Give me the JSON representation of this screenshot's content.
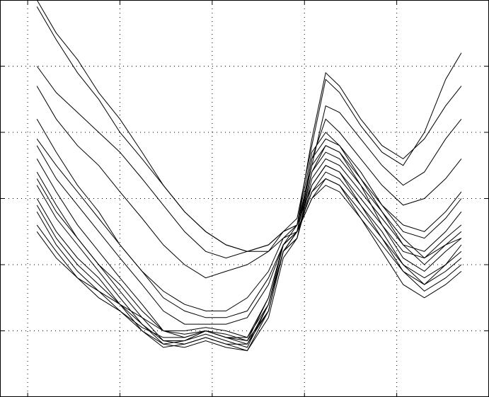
{
  "chart_data": {
    "type": "line",
    "x": [
      0.1,
      0.31,
      0.54,
      0.77,
      1.0,
      1.24,
      1.47,
      1.7,
      1.93,
      2.15,
      2.38,
      2.61,
      2.77,
      2.92,
      3.08,
      3.23,
      3.38,
      3.61,
      3.84,
      4.07,
      4.3,
      4.53,
      4.7
    ],
    "xlim": [
      -0.3,
      5
    ],
    "xticks": [
      0,
      1,
      2,
      3,
      4
    ],
    "ylim": [
      0,
      6
    ],
    "yticks": [
      1,
      2,
      3,
      4,
      5
    ],
    "grid": true,
    "series": [
      {
        "color": "#000000",
        "values": [
          5.9,
          5.4,
          4.9,
          4.5,
          4.0,
          3.6,
          3.2,
          2.8,
          2.5,
          2.3,
          2.2,
          2.3,
          2.5,
          2.7,
          3.8,
          4.8,
          4.6,
          4.1,
          3.7,
          3.5,
          4.0,
          4.8,
          5.2
        ]
      },
      {
        "color": "#000000",
        "values": [
          5.0,
          4.6,
          4.3,
          4.0,
          3.7,
          3.3,
          2.9,
          2.5,
          2.2,
          2.1,
          2.2,
          2.2,
          2.5,
          2.6,
          3.5,
          4.4,
          4.3,
          3.9,
          3.5,
          3.2,
          3.4,
          3.9,
          4.2
        ]
      },
      {
        "color": "#000000",
        "values": [
          4.7,
          4.2,
          3.8,
          3.5,
          3.1,
          2.7,
          2.3,
          2.0,
          1.8,
          1.9,
          2.0,
          2.2,
          2.4,
          2.5,
          3.6,
          4.2,
          4.0,
          3.6,
          3.2,
          2.9,
          3.0,
          3.3,
          3.6
        ]
      },
      {
        "color": "#000000",
        "values": [
          4.2,
          3.7,
          3.2,
          2.8,
          2.3,
          1.9,
          1.6,
          1.4,
          1.3,
          1.3,
          1.5,
          1.9,
          2.4,
          2.6,
          3.7,
          4.0,
          3.8,
          3.4,
          2.9,
          2.5,
          2.4,
          2.7,
          3.0
        ]
      },
      {
        "color": "#000000",
        "values": [
          3.8,
          3.3,
          2.9,
          2.5,
          2.1,
          1.7,
          1.3,
          1.1,
          1.1,
          1.1,
          1.2,
          1.7,
          2.3,
          2.5,
          3.5,
          3.8,
          3.7,
          3.3,
          2.8,
          2.3,
          2.2,
          2.5,
          2.8
        ]
      },
      {
        "color": "#000000",
        "values": [
          3.6,
          3.1,
          2.6,
          2.2,
          1.8,
          1.4,
          1.0,
          0.9,
          1.0,
          0.9,
          0.9,
          1.4,
          2.2,
          2.5,
          3.4,
          3.7,
          3.6,
          3.2,
          2.8,
          2.4,
          2.1,
          2.4,
          2.6
        ]
      },
      {
        "color": "#000000",
        "values": [
          3.4,
          2.9,
          2.4,
          2.0,
          1.6,
          1.2,
          0.85,
          0.8,
          0.9,
          0.8,
          0.8,
          1.3,
          2.2,
          2.4,
          3.3,
          3.6,
          3.5,
          3.1,
          2.7,
          2.3,
          2.0,
          2.3,
          2.5
        ]
      },
      {
        "color": "#000000",
        "values": [
          3.2,
          2.7,
          2.3,
          1.9,
          1.5,
          1.1,
          0.8,
          0.75,
          0.85,
          0.75,
          0.7,
          1.2,
          2.1,
          2.4,
          3.2,
          3.5,
          3.4,
          3.0,
          2.6,
          2.1,
          1.9,
          2.2,
          2.4
        ]
      },
      {
        "color": "#000000",
        "values": [
          3.0,
          2.5,
          2.1,
          1.8,
          1.4,
          1.0,
          0.75,
          0.8,
          0.9,
          0.8,
          0.7,
          1.3,
          2.2,
          2.5,
          3.1,
          3.4,
          3.3,
          2.9,
          2.5,
          2.0,
          1.8,
          2.0,
          2.2
        ]
      },
      {
        "color": "#000000",
        "values": [
          2.8,
          2.3,
          1.9,
          1.6,
          1.3,
          1.0,
          0.8,
          0.85,
          0.95,
          0.85,
          0.75,
          1.4,
          2.2,
          2.5,
          3.0,
          3.3,
          3.2,
          2.8,
          2.4,
          1.9,
          1.6,
          1.8,
          2.0
        ]
      },
      {
        "color": "#000000",
        "values": [
          2.6,
          2.2,
          1.8,
          1.5,
          1.3,
          1.05,
          0.9,
          0.9,
          1.0,
          0.95,
          0.85,
          1.5,
          2.3,
          2.5,
          3.0,
          3.2,
          3.1,
          2.7,
          2.2,
          1.7,
          1.5,
          1.7,
          1.9
        ]
      },
      {
        "color": "#000000",
        "values": [
          2.5,
          2.1,
          1.8,
          1.6,
          1.4,
          1.2,
          1.0,
          1.0,
          1.05,
          1.0,
          0.9,
          1.5,
          2.3,
          2.5,
          3.1,
          3.3,
          3.2,
          2.7,
          2.3,
          1.9,
          1.7,
          1.9,
          2.1
        ]
      },
      {
        "color": "#000000",
        "values": [
          3.9,
          3.5,
          3.1,
          2.7,
          2.3,
          1.9,
          1.5,
          1.3,
          1.2,
          1.2,
          1.3,
          1.8,
          2.3,
          2.5,
          3.6,
          3.9,
          3.8,
          3.3,
          2.9,
          2.6,
          2.5,
          2.8,
          3.1
        ]
      },
      {
        "color": "#000000",
        "values": [
          6.0,
          5.5,
          5.1,
          4.6,
          4.2,
          3.7,
          3.2,
          2.8,
          2.5,
          2.3,
          2.2,
          2.3,
          2.5,
          2.6,
          3.9,
          4.9,
          4.7,
          4.2,
          3.8,
          3.6,
          3.9,
          4.4,
          4.7
        ]
      },
      {
        "color": "#000000",
        "values": [
          3.3,
          2.8,
          2.4,
          2.0,
          1.7,
          1.3,
          1.0,
          0.95,
          1.0,
          0.9,
          0.85,
          1.3,
          2.2,
          2.4,
          3.4,
          3.8,
          3.7,
          3.2,
          2.6,
          2.2,
          2.1,
          2.3,
          2.4
        ]
      },
      {
        "color": "#000000",
        "values": [
          2.9,
          2.4,
          2.0,
          1.7,
          1.4,
          1.1,
          0.85,
          0.85,
          1.0,
          0.9,
          0.8,
          1.4,
          2.3,
          2.6,
          3.2,
          3.5,
          3.4,
          2.9,
          2.4,
          2.0,
          1.7,
          2.0,
          2.3
        ]
      }
    ]
  }
}
